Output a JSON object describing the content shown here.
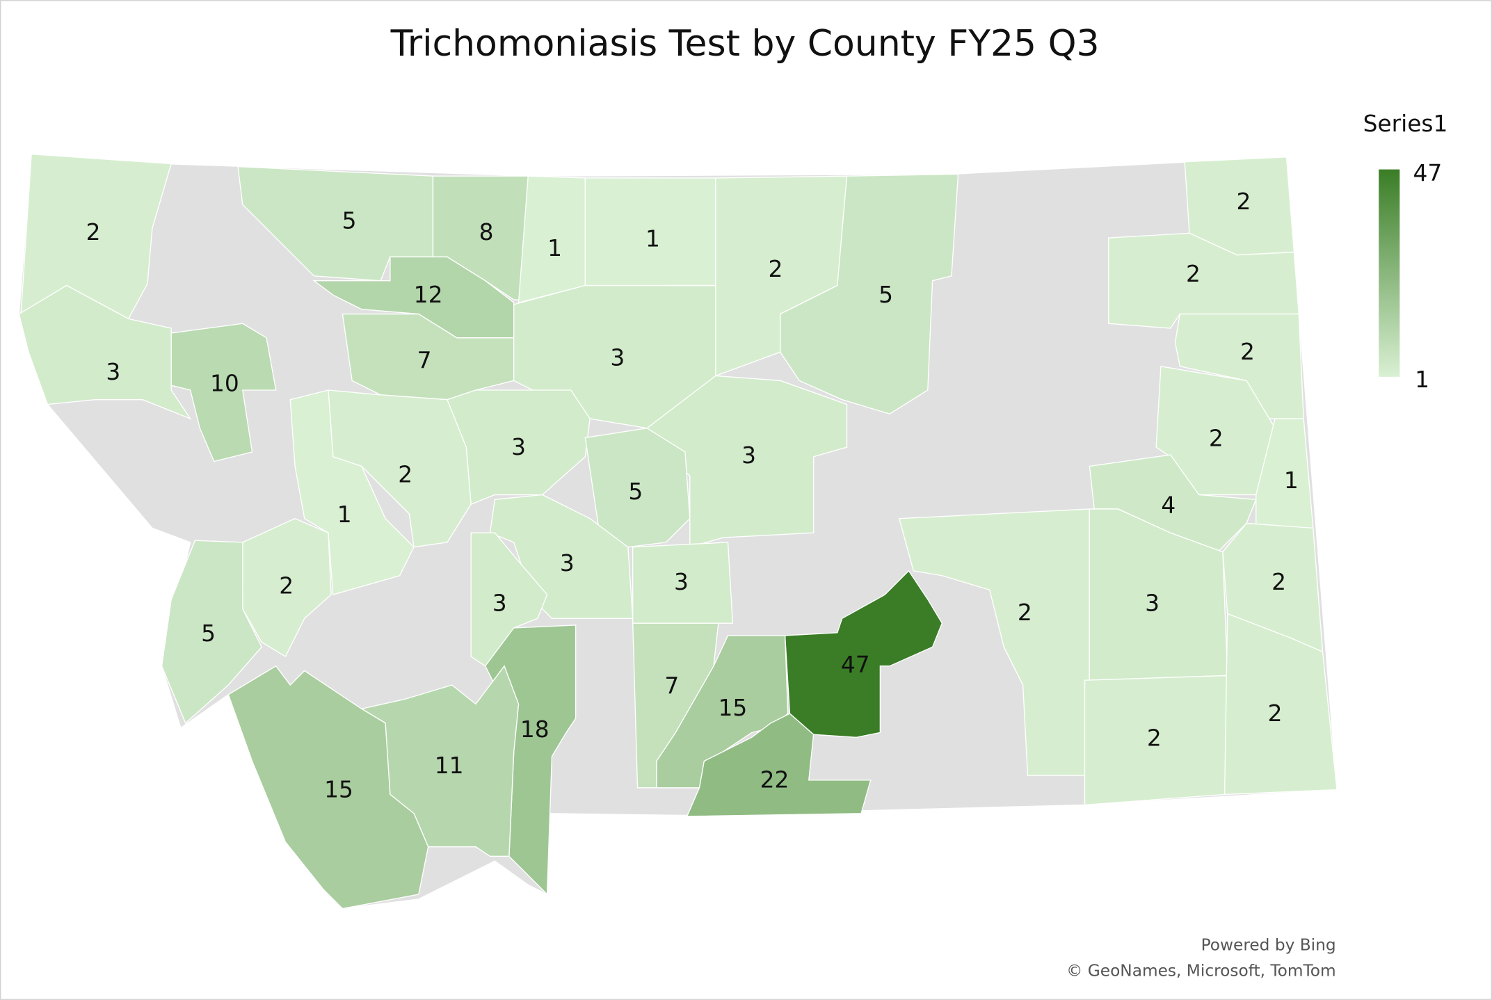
{
  "chart_data": {
    "type": "map",
    "title": "Trichomoniasis Test by County FY25 Q3",
    "legend_title": "Series1",
    "values": [
      2,
      5,
      8,
      1,
      1,
      2,
      5,
      2,
      12,
      2,
      3,
      10,
      7,
      3,
      2,
      3,
      3,
      2,
      2,
      5,
      1,
      1,
      4,
      3,
      3,
      2,
      3,
      5,
      2,
      3,
      2,
      47,
      7,
      15,
      18,
      22,
      2,
      2,
      11,
      15
    ],
    "color_scale": {
      "min": 1,
      "max": 47,
      "colors": [
        "#d9f0d3",
        "#3a7d26"
      ]
    },
    "no_data_color": "#e0e0e0",
    "attribution": [
      "Powered by Bing",
      "© GeoNames, Microsoft, TomTom"
    ]
  }
}
